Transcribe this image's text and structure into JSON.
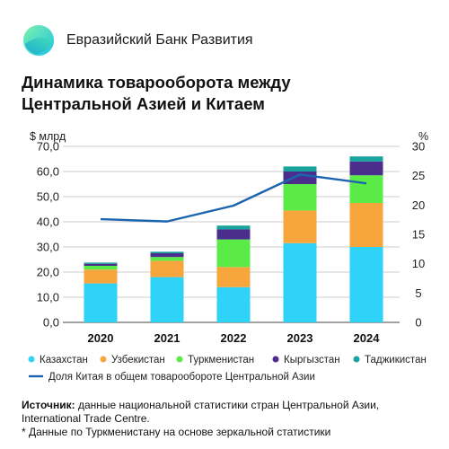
{
  "brand": {
    "name": "Евразийский Банк Развития",
    "logo_icon": "ebr-logo-icon"
  },
  "title_lines": [
    "Динамика товарооборота между",
    "Центральной Азией и Китаем"
  ],
  "footer": {
    "source_label": "Источник:",
    "source_text": " данные национальной статистики стран Центральной Азии, International Trade Centre.",
    "note": "* Данные по Туркменистану на основе зеркальной статистики"
  },
  "chart_data": {
    "type": "bar",
    "stacked": true,
    "categories": [
      "2020",
      "2021",
      "2022",
      "2023",
      "2024"
    ],
    "y_left_label": "$ млрд",
    "y_right_label": "%",
    "y_left_ticks": [
      "0,0",
      "10,0",
      "20,0",
      "30,0",
      "40,0",
      "50,0",
      "60,0",
      "70,0"
    ],
    "y_right_ticks": [
      "0",
      "5",
      "10",
      "15",
      "20",
      "25",
      "30"
    ],
    "ylim": [
      0,
      70
    ],
    "y2lim": [
      0,
      30
    ],
    "series": [
      {
        "name": "Казахстан",
        "color": "#2ed3f7",
        "values": [
          15.5,
          18.0,
          14.0,
          31.5,
          30.0
        ]
      },
      {
        "name": "Узбекистан",
        "color": "#f7a53d",
        "values": [
          5.5,
          6.5,
          8.0,
          13.0,
          17.5
        ]
      },
      {
        "name": "Туркменистан",
        "color": "#5aeb46",
        "values": [
          1.5,
          1.5,
          11.0,
          10.5,
          11.0
        ]
      },
      {
        "name": "Кыргызстан",
        "color": "#4a2d8c",
        "values": [
          0.8,
          1.5,
          4.0,
          5.0,
          5.5
        ]
      },
      {
        "name": "Таджикистан",
        "color": "#1aa39c",
        "values": [
          0.5,
          0.6,
          1.5,
          2.0,
          2.0
        ]
      }
    ],
    "line_series": {
      "name": "Доля Китая в общем товарообороте Центральной Азии",
      "color": "#1c64b0",
      "values": [
        17.6,
        17.2,
        19.9,
        25.2,
        23.7
      ]
    },
    "grid": true
  }
}
